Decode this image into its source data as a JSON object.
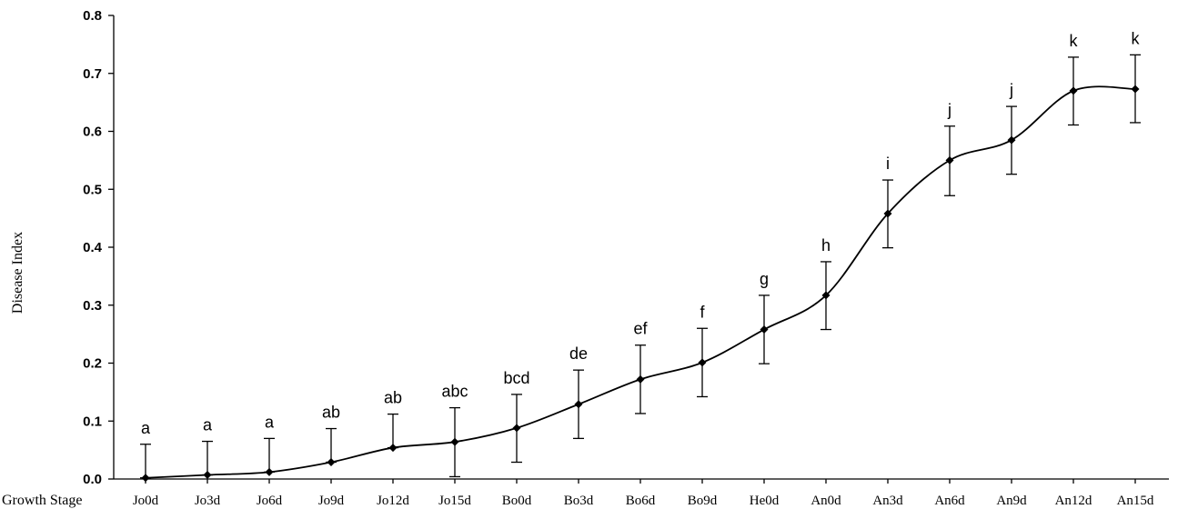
{
  "chart_data": {
    "type": "line",
    "title": "",
    "xlabel": "Growth Stage",
    "ylabel": "Disease Index",
    "ylim": [
      0,
      0.8
    ],
    "yticks": [
      "0.0",
      "0.1",
      "0.2",
      "0.3",
      "0.4",
      "0.5",
      "0.6",
      "0.7",
      "0.8"
    ],
    "grid": false,
    "legend": "none",
    "categories": [
      "Jo0d",
      "Jo3d",
      "Jo6d",
      "Jo9d",
      "Jo12d",
      "Jo15d",
      "Bo0d",
      "Bo3d",
      "Bo6d",
      "Bo9d",
      "He0d",
      "An0d",
      "An3d",
      "An6d",
      "An9d",
      "An12d",
      "An15d"
    ],
    "series": [
      {
        "values": [
          0.002,
          0.007,
          0.012,
          0.029,
          0.054,
          0.064,
          0.088,
          0.129,
          0.172,
          0.201,
          0.258,
          0.317,
          0.458,
          0.55,
          0.585,
          0.67,
          0.673
        ],
        "error_upper": [
          0.06,
          0.065,
          0.07,
          0.087,
          0.112,
          0.123,
          0.146,
          0.188,
          0.231,
          0.26,
          0.317,
          0.375,
          0.516,
          0.609,
          0.643,
          0.728,
          0.732
        ],
        "error_lower": [
          0.002,
          0.007,
          0.012,
          0.029,
          0.054,
          0.004,
          0.029,
          0.07,
          0.113,
          0.142,
          0.199,
          0.258,
          0.399,
          0.489,
          0.526,
          0.611,
          0.615
        ],
        "significance": [
          "a",
          "a",
          "a",
          "ab",
          "ab",
          "abc",
          "bcd",
          "de",
          "ef",
          "f",
          "g",
          "h",
          "i",
          "j",
          "j",
          "k",
          "k"
        ]
      }
    ]
  }
}
